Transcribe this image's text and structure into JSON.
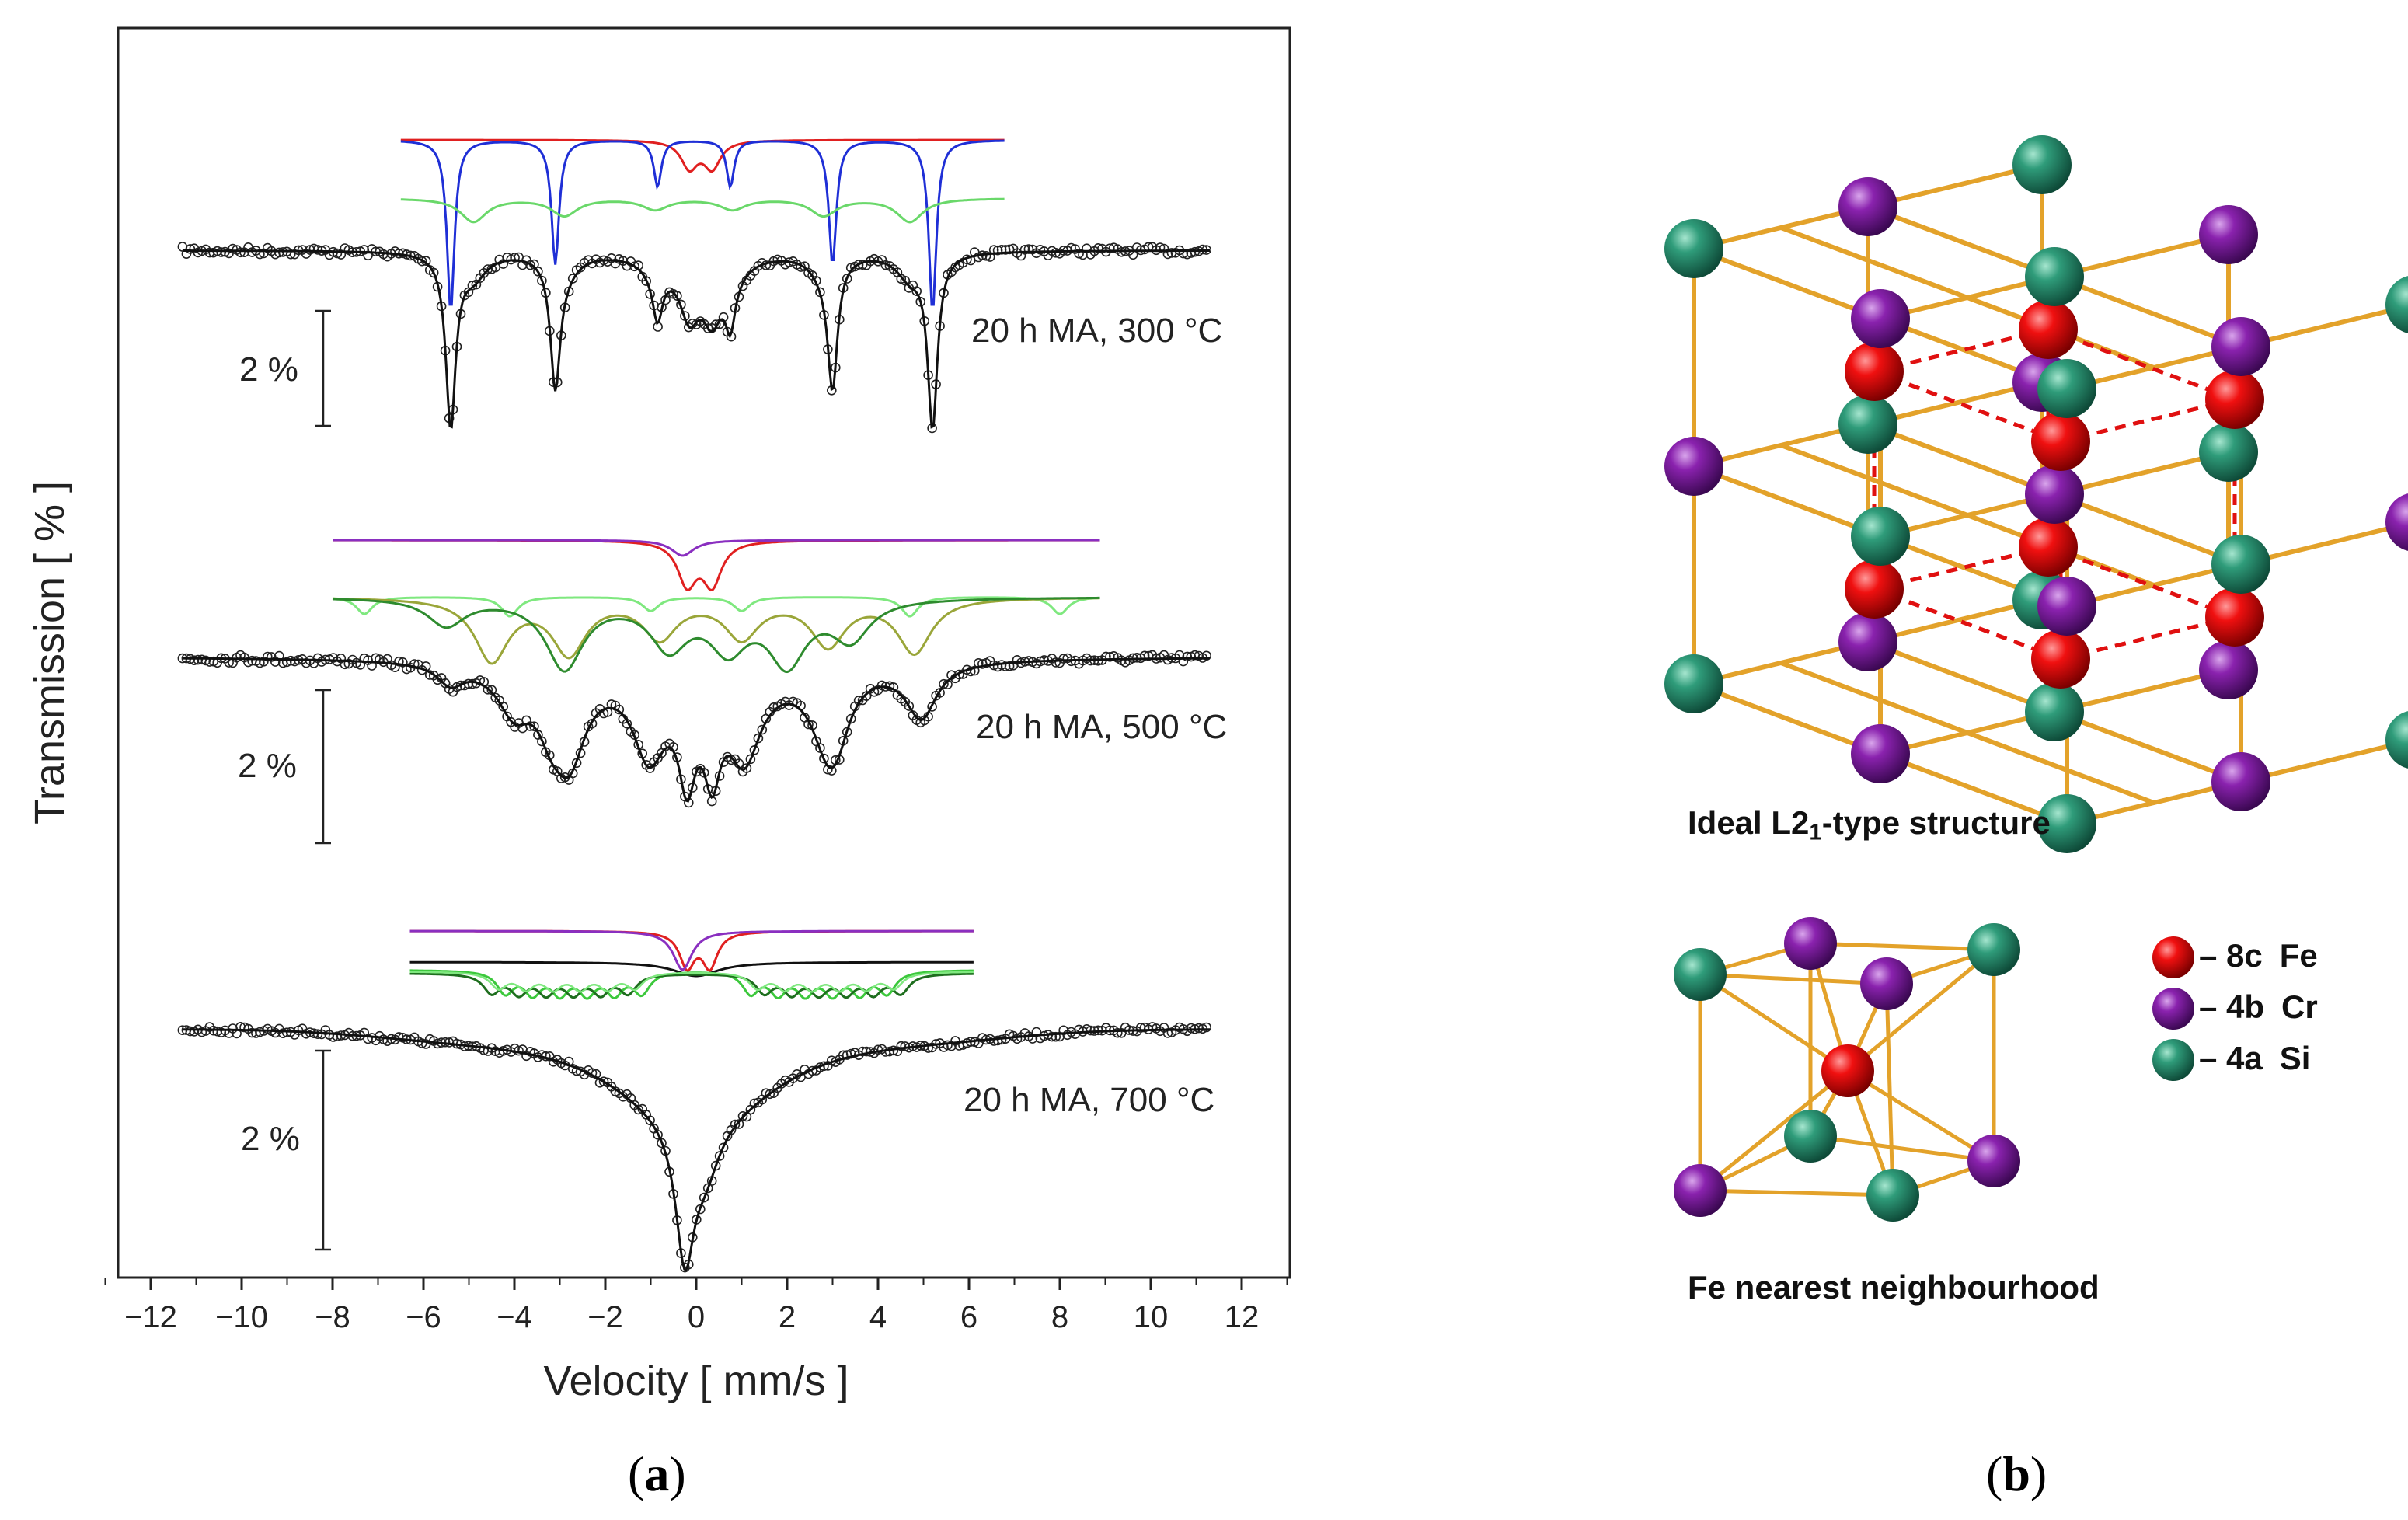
{
  "chart_data": {
    "type": "line",
    "title": "",
    "xlabel": "Velocity [ mm/s ]",
    "ylabel": "Transmission [ % ]",
    "xlim": [
      -13,
      13
    ],
    "xticks": [
      -12,
      -10,
      -8,
      -6,
      -4,
      -2,
      0,
      2,
      4,
      6,
      8,
      10,
      12
    ],
    "xtick_labels": [
      "−12",
      "−10",
      "−8",
      "−6",
      "−4",
      "−2",
      "0",
      "2",
      "4",
      "6",
      "8",
      "10",
      "12"
    ],
    "y_scale_note": "vertical offset stacked spectra; each has its own 2 % scale bar",
    "spectra": [
      {
        "label": "20 h MA, 300 °C",
        "scale_bar": "2 %",
        "velocity_range": [
          -11.3,
          11.3
        ],
        "sextet_lines": [
          -5.4,
          -3.1,
          -0.85,
          0.75,
          3.0,
          5.2
        ],
        "central_doublet": [
          -0.15,
          0.35
        ],
        "components": [
          {
            "name": "paramagnetic doublet",
            "color": "#e02020"
          },
          {
            "name": "sextet (sharp)",
            "color": "#1f2fd6"
          },
          {
            "name": "sextet (broad)",
            "color": "#6ad86a"
          }
        ]
      },
      {
        "label": "20 h MA, 500 °C",
        "scale_bar": "2 %",
        "velocity_range": [
          -11.3,
          11.3
        ],
        "components": [
          {
            "name": "doublet",
            "color": "#e02020"
          },
          {
            "name": "singlet",
            "color": "#8a2fc0"
          },
          {
            "name": "sextet 1",
            "color": "#7fe87f"
          },
          {
            "name": "sextet 2",
            "color": "#9aa63a"
          },
          {
            "name": "sextet 3",
            "color": "#2e8b2e"
          }
        ]
      },
      {
        "label": "20 h MA, 700 °C",
        "scale_bar": "2 %",
        "velocity_range": [
          -11.3,
          11.3
        ],
        "components": [
          {
            "name": "doublet",
            "color": "#e02020"
          },
          {
            "name": "singlet",
            "color": "#8a2fc0"
          },
          {
            "name": "hyperfine distribution",
            "color": "#3cc83c"
          },
          {
            "name": "hyperfine distribution (dark)",
            "color": "#1e6e1e"
          }
        ]
      }
    ]
  },
  "panel_a_label": "a",
  "panel_b_label": "b",
  "structure": {
    "caption_main_prefix": "Ideal L2",
    "caption_main_sub": "1",
    "caption_main_suffix": "-type structure",
    "caption_neighbour": "Fe nearest neighbourhood",
    "legend": [
      {
        "site": "– 8c",
        "element": "Fe",
        "color": "#e00000"
      },
      {
        "site": "– 4b",
        "element": "Cr",
        "color": "#7a1a9a"
      },
      {
        "site": "– 4a",
        "element": "Si",
        "color": "#2a9070"
      }
    ],
    "bond_color": "#e3a22a"
  }
}
